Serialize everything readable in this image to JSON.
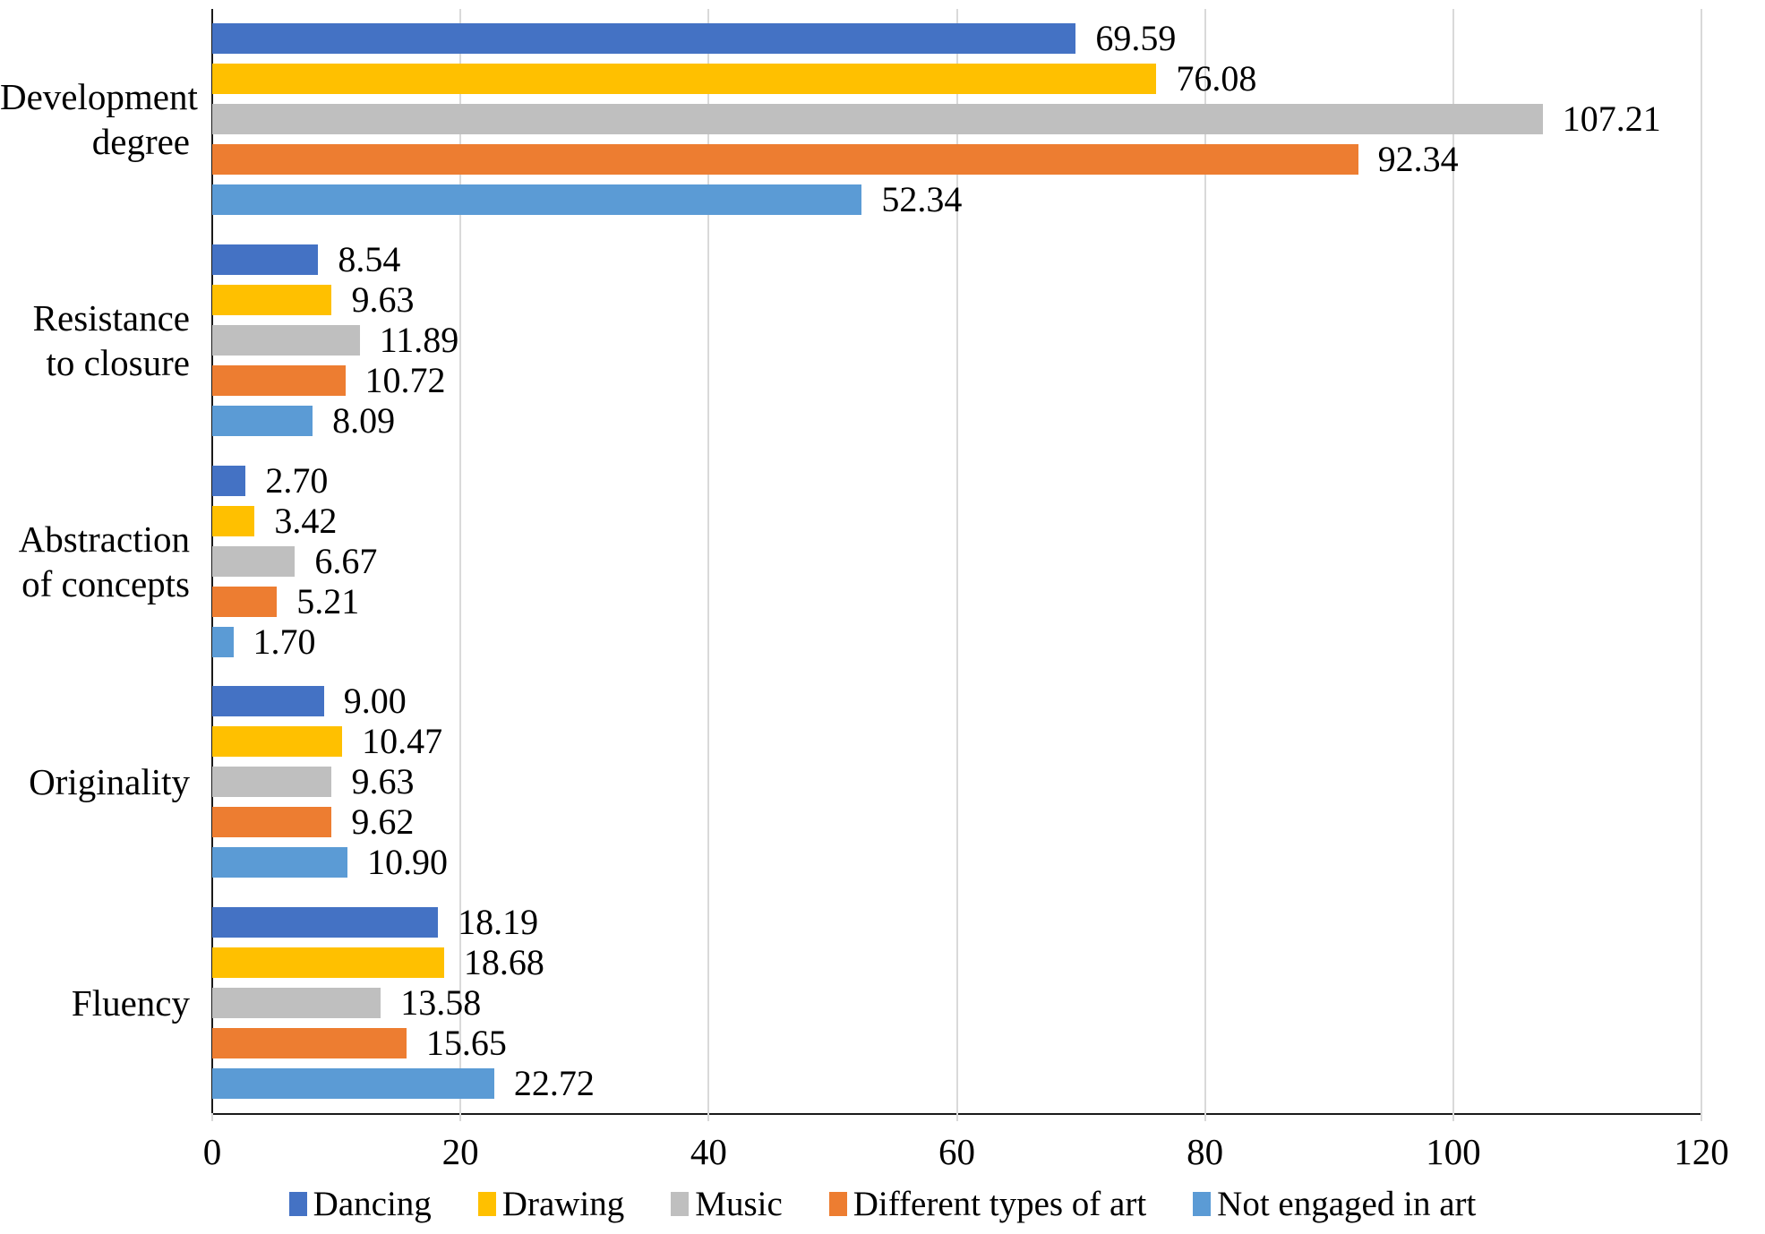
{
  "colors": {
    "background": "#FFFFFF",
    "axis": "#1A1A1A",
    "gridline": "#D9D9D9",
    "text": "#000000"
  },
  "chart_data": {
    "type": "bar",
    "orientation": "horizontal",
    "title": "",
    "xlabel": "",
    "ylabel": "",
    "xlim": [
      0,
      120
    ],
    "x_ticks": [
      0,
      20,
      40,
      60,
      80,
      100,
      120
    ],
    "grid": true,
    "legend_position": "bottom",
    "categories": [
      "Development degree",
      "Resistance to closure",
      "Abstraction of concepts",
      "Originality",
      "Fluency"
    ],
    "category_label_lines": [
      "Development\ndegree",
      "Resistance\nto closure",
      "Abstraction\nof concepts",
      "Originality",
      "Fluency"
    ],
    "series": [
      {
        "name": "Dancing",
        "color": "#4472C4",
        "values": [
          69.59,
          8.54,
          2.7,
          9.0,
          18.19
        ]
      },
      {
        "name": "Drawing",
        "color": "#FFC000",
        "values": [
          76.08,
          9.63,
          3.42,
          10.47,
          18.68
        ]
      },
      {
        "name": "Music",
        "color": "#BFBFBF",
        "values": [
          107.21,
          11.89,
          6.67,
          9.63,
          13.58
        ]
      },
      {
        "name": "Different types of art",
        "color": "#ED7D31",
        "values": [
          92.34,
          10.72,
          5.21,
          9.62,
          15.65
        ]
      },
      {
        "name": "Not engaged in art",
        "color": "#5B9BD5",
        "values": [
          52.34,
          8.09,
          1.7,
          10.9,
          22.72
        ]
      }
    ],
    "data_label_format": "0.00",
    "data_labels_visible": true
  }
}
